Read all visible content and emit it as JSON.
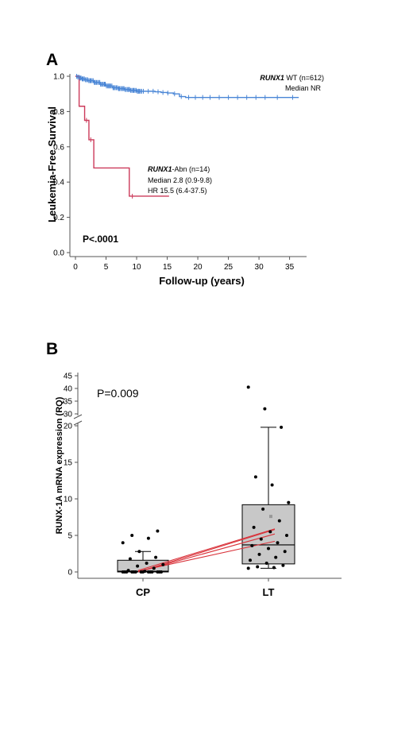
{
  "chart_data": [
    {
      "type": "line",
      "panel_label": "A",
      "xlabel": "Follow-up (years)",
      "ylabel": "Leukemia-Free Survival",
      "xlim": [
        0,
        37
      ],
      "ylim": [
        0,
        1.0
      ],
      "x_ticks": [
        0,
        5,
        10,
        15,
        20,
        25,
        30,
        35
      ],
      "y_ticks": [
        "0.0",
        "0.2",
        "0.4",
        "0.6",
        "0.8",
        "1.0"
      ],
      "p_value": "P<.0001",
      "series": [
        {
          "color": "#4a86d6",
          "label_gene": "RUNX1",
          "label_rest": " WT (n=612)",
          "label_line2": "Median  NR",
          "x": [
            0,
            0.3,
            0.6,
            1,
            1.5,
            2,
            3,
            4,
            5,
            6,
            7,
            8,
            9,
            10,
            11,
            12,
            13,
            14,
            15,
            16,
            17,
            18,
            25,
            30,
            36.5
          ],
          "y": [
            1.0,
            0.995,
            0.99,
            0.985,
            0.98,
            0.975,
            0.965,
            0.955,
            0.945,
            0.935,
            0.93,
            0.925,
            0.92,
            0.915,
            0.915,
            0.915,
            0.912,
            0.908,
            0.905,
            0.9,
            0.885,
            0.88,
            0.88,
            0.88,
            0.88
          ],
          "censor_x": [
            0.8,
            1.2,
            1.8,
            2.4,
            3.2,
            4.1,
            4.8,
            5.5,
            6.3,
            7.1,
            7.9,
            8.7,
            9.5,
            10.3,
            11.1,
            11.9,
            12.7,
            13.5,
            14.3,
            15.1,
            16.2,
            17.3,
            18.5,
            19.6,
            20.8,
            22,
            23.5,
            25,
            26.5,
            28,
            29.5,
            31,
            33,
            35.5
          ]
        },
        {
          "color": "#cc3a5a",
          "label_gene": "RUNX1",
          "label_rest": "-Abn (n=14)",
          "label_line2": "Median 2.8 (0.9-9.8)",
          "label_line3": "HR 15.5 (6.4-37.5)",
          "x": [
            0,
            0.5,
            0.6,
            1.5,
            2.2,
            3.0,
            8.8,
            15.3
          ],
          "y": [
            1.0,
            1.0,
            0.83,
            0.75,
            0.64,
            0.48,
            0.32,
            0.32
          ],
          "censor_x": [
            1.8,
            2.5,
            9.3
          ]
        }
      ]
    },
    {
      "type": "box",
      "panel_label": "B",
      "ylabel": "RUNX-1A mRNA expression (RQ)",
      "categories": [
        "CP",
        "LT"
      ],
      "p_value": "P=0.009",
      "y_ticks_lower": [
        "0",
        "5",
        "10",
        "15",
        "20"
      ],
      "y_ticks_upper": [
        "30",
        "35",
        "40",
        "45"
      ],
      "axis_break": [
        20,
        30
      ],
      "boxes": [
        {
          "category": "CP",
          "whisker_low": 0,
          "q1": 0,
          "median": 0.1,
          "q3": 1.6,
          "whisker_high": 2.8,
          "points": [
            0,
            0,
            0,
            0,
            0,
            0,
            0,
            0,
            0,
            0,
            0,
            0,
            0,
            0,
            0.1,
            0.2,
            0.5,
            0.8,
            1.0,
            1.2,
            1.8,
            2.0,
            2.8,
            4.0,
            4.6,
            5.0,
            5.6
          ]
        },
        {
          "category": "LT",
          "whisker_low": 0.5,
          "q1": 1.1,
          "median": 3.7,
          "q3": 9.2,
          "whisker_high": 19.8,
          "points": [
            0.5,
            0.6,
            0.7,
            0.9,
            1.2,
            1.6,
            2.0,
            2.4,
            2.8,
            3.2,
            3.6,
            4.0,
            4.5,
            5.0,
            5.5,
            6.1,
            7.0,
            8.6,
            9.5,
            11.9,
            13.0,
            19.8,
            32,
            40.5
          ]
        }
      ],
      "paired_lines": [
        [
          0,
          5.8
        ],
        [
          0,
          5.2
        ],
        [
          0.1,
          4.2
        ],
        [
          0.2,
          5.9
        ]
      ]
    }
  ]
}
